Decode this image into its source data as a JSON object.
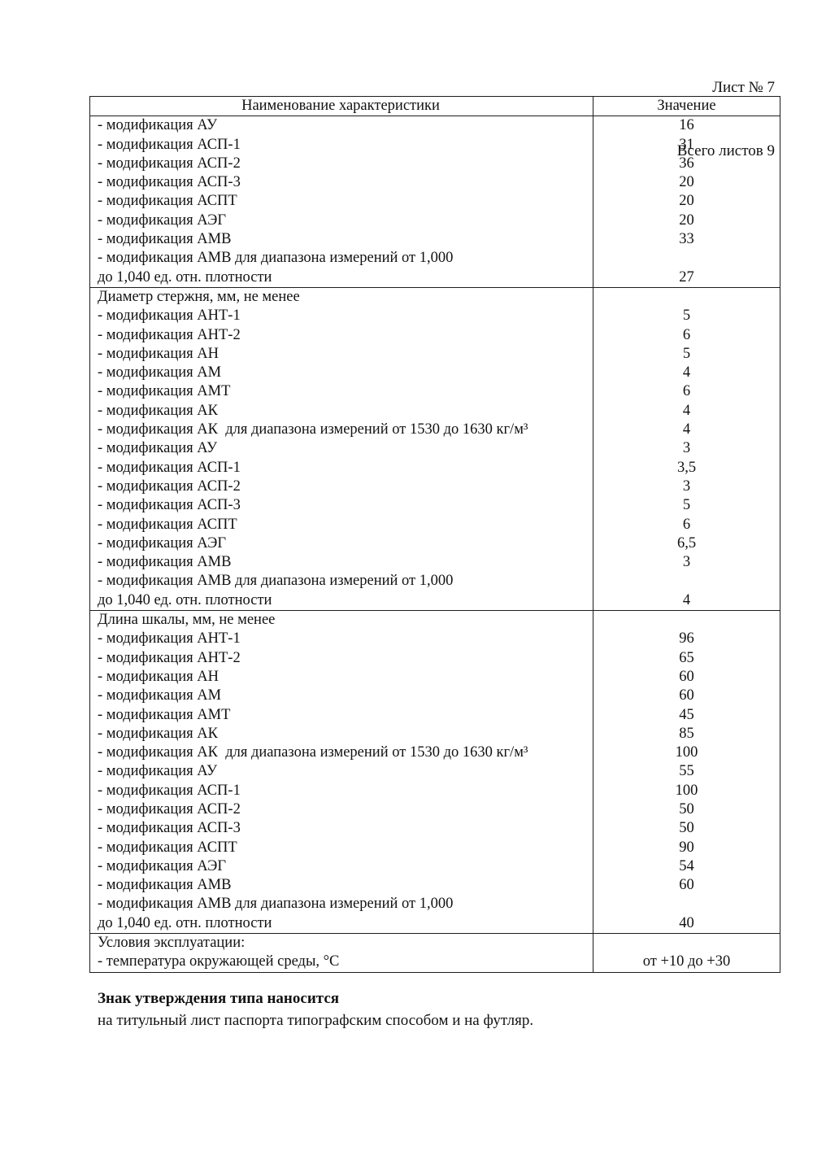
{
  "page": {
    "sheet_label": "Лист № 7",
    "total_sheets_label": "Всего листов 9"
  },
  "table": {
    "header": {
      "name": "Наименование характеристики",
      "value": "Значение"
    },
    "sections": [
      {
        "rows": [
          {
            "name": "- модификация АУ",
            "value": "16"
          },
          {
            "name": "- модификация АСП-1",
            "value": "31"
          },
          {
            "name": "- модификация АСП-2",
            "value": "36"
          },
          {
            "name": "- модификация АСП-3",
            "value": "20"
          },
          {
            "name": "- модификация АСПТ",
            "value": "20"
          },
          {
            "name": "- модификация АЭГ",
            "value": "20"
          },
          {
            "name": "- модификация АМВ",
            "value": "33"
          },
          {
            "name": "- модификация АМВ для диапазона измерений от 1,000",
            "value": ""
          },
          {
            "name": "до 1,040 ед. отн. плотности",
            "value": "27"
          }
        ]
      },
      {
        "rows": [
          {
            "name": "Диаметр стержня, мм, не менее",
            "value": ""
          },
          {
            "name": "- модификация АНТ-1",
            "value": "5"
          },
          {
            "name": "- модификация АНТ-2",
            "value": "6"
          },
          {
            "name": "- модификация АН",
            "value": "5"
          },
          {
            "name": "- модификация АМ",
            "value": "4"
          },
          {
            "name": "- модификация АМТ",
            "value": "6"
          },
          {
            "name": "- модификация АК",
            "value": "4"
          },
          {
            "name": "- модификация АК  для диапазона измерений от 1530 до 1630 кг/м³",
            "value": "4"
          },
          {
            "name": "- модификация АУ",
            "value": "3"
          },
          {
            "name": "- модификация АСП-1",
            "value": "3,5"
          },
          {
            "name": "- модификация АСП-2",
            "value": "3"
          },
          {
            "name": "- модификация АСП-3",
            "value": "5"
          },
          {
            "name": "- модификация АСПТ",
            "value": "6"
          },
          {
            "name": "- модификация АЭГ",
            "value": "6,5"
          },
          {
            "name": "- модификация АМВ",
            "value": "3"
          },
          {
            "name": "- модификация АМВ для диапазона измерений от 1,000",
            "value": ""
          },
          {
            "name": "до 1,040 ед. отн. плотности",
            "value": "4"
          }
        ]
      },
      {
        "rows": [
          {
            "name": "Длина шкалы, мм, не менее",
            "value": ""
          },
          {
            "name": "- модификация АНТ-1",
            "value": "96"
          },
          {
            "name": "- модификация АНТ-2",
            "value": "65"
          },
          {
            "name": "- модификация АН",
            "value": "60"
          },
          {
            "name": "- модификация АМ",
            "value": "60"
          },
          {
            "name": "- модификация АМТ",
            "value": "45"
          },
          {
            "name": "- модификация АК",
            "value": "85"
          },
          {
            "name": "- модификация АК  для диапазона измерений от 1530 до 1630 кг/м³",
            "value": "100"
          },
          {
            "name": "- модификация АУ",
            "value": "55"
          },
          {
            "name": "- модификация АСП-1",
            "value": "100"
          },
          {
            "name": "- модификация АСП-2",
            "value": "50"
          },
          {
            "name": "- модификация АСП-3",
            "value": "50"
          },
          {
            "name": "- модификация АСПТ",
            "value": "90"
          },
          {
            "name": "- модификация АЭГ",
            "value": "54"
          },
          {
            "name": "- модификация АМВ",
            "value": "60"
          },
          {
            "name": "- модификация АМВ для диапазона измерений от 1,000",
            "value": ""
          },
          {
            "name": "до 1,040 ед. отн. плотности",
            "value": "40"
          }
        ]
      },
      {
        "rows": [
          {
            "name": "Условия эксплуатации:",
            "value": ""
          },
          {
            "name": "- температура окружающей среды, °С",
            "value": "от +10 до +30"
          }
        ]
      }
    ]
  },
  "footer": {
    "bold_line": "Знак утверждения типа наносится",
    "text_line": "на титульный лист паспорта типографским способом и на футляр."
  }
}
